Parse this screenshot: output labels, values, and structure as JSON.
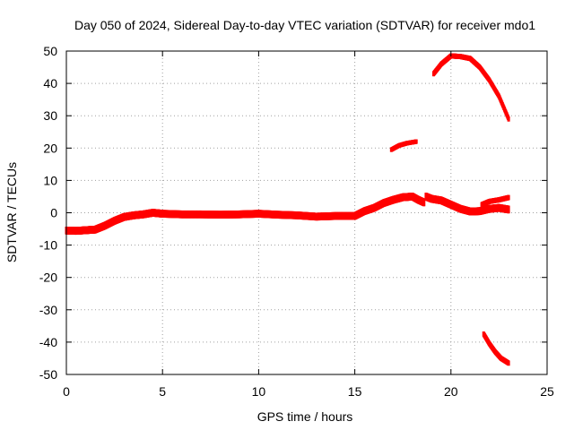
{
  "chart_data": {
    "type": "scatter",
    "title": "Day 050 of 2024, Sidereal Day-to-day VTEC variation (SDTVAR) for receiver mdo1",
    "xlabel": "GPS time / hours",
    "ylabel": "SDTVAR / TECUs",
    "xlim": [
      0,
      25
    ],
    "ylim": [
      -50,
      50
    ],
    "xticks": [
      0,
      5,
      10,
      15,
      20,
      25
    ],
    "yticks": [
      -50,
      -40,
      -30,
      -20,
      -10,
      0,
      10,
      20,
      30,
      40,
      50
    ],
    "grid": true,
    "legend": "none",
    "color": "#ff0000",
    "series": [
      {
        "name": "main-trace",
        "band": 1.2,
        "points": [
          [
            0,
            -5.5
          ],
          [
            0.5,
            -5.6
          ],
          [
            1,
            -5.4
          ],
          [
            1.5,
            -5.2
          ],
          [
            2,
            -4
          ],
          [
            2.5,
            -2.5
          ],
          [
            3,
            -1.3
          ],
          [
            3.5,
            -0.8
          ],
          [
            4,
            -0.5
          ],
          [
            4.5,
            0
          ],
          [
            5,
            -0.3
          ],
          [
            6,
            -0.5
          ],
          [
            7,
            -0.5
          ],
          [
            8,
            -0.6
          ],
          [
            9,
            -0.5
          ],
          [
            10,
            -0.3
          ],
          [
            11,
            -0.6
          ],
          [
            12,
            -0.8
          ],
          [
            13,
            -1.2
          ],
          [
            14,
            -1
          ],
          [
            15,
            -1
          ],
          [
            15.5,
            0.5
          ],
          [
            16,
            1.5
          ],
          [
            16.5,
            3
          ],
          [
            17,
            4
          ],
          [
            17.5,
            4.8
          ],
          [
            18,
            5
          ],
          [
            18.3,
            4
          ],
          [
            18.6,
            3.2
          ]
        ]
      },
      {
        "name": "trace-segment-2",
        "band": 1.2,
        "points": [
          [
            18.7,
            5
          ],
          [
            19,
            4.3
          ],
          [
            19.5,
            3.8
          ],
          [
            20,
            2.5
          ],
          [
            20.5,
            1.2
          ],
          [
            21,
            0.4
          ],
          [
            21.5,
            0.5
          ],
          [
            22,
            1.2
          ],
          [
            22.5,
            1.5
          ],
          [
            23,
            1
          ]
        ]
      },
      {
        "name": "trace-segment-3",
        "band": 0.8,
        "points": [
          [
            21.6,
            2.5
          ],
          [
            22,
            3.5
          ],
          [
            22.5,
            4
          ],
          [
            23,
            4.7
          ]
        ]
      },
      {
        "name": "upper-arc-small",
        "band": 0.7,
        "points": [
          [
            16.9,
            19.5
          ],
          [
            17.3,
            20.8
          ],
          [
            17.7,
            21.5
          ],
          [
            18.2,
            22
          ]
        ]
      },
      {
        "name": "upper-arc-large",
        "band": 0.8,
        "points": [
          [
            19.1,
            43
          ],
          [
            19.5,
            46
          ],
          [
            20,
            48.5
          ],
          [
            20.5,
            48.3
          ],
          [
            21,
            47.7
          ],
          [
            21.5,
            45
          ],
          [
            22,
            41
          ],
          [
            22.5,
            36
          ],
          [
            23,
            29
          ]
        ]
      },
      {
        "name": "lower-arc",
        "band": 0.8,
        "points": [
          [
            21.7,
            -37.5
          ],
          [
            22,
            -40.5
          ],
          [
            22.3,
            -43
          ],
          [
            22.6,
            -45
          ],
          [
            23,
            -46.5
          ]
        ]
      }
    ]
  }
}
